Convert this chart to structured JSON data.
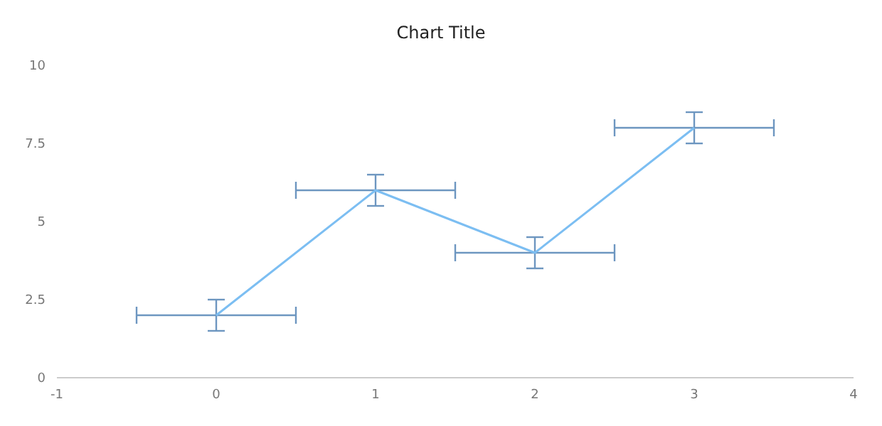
{
  "chart_data": {
    "type": "line",
    "title": "Chart Title",
    "x": [
      0,
      1,
      2,
      3
    ],
    "series": [
      {
        "color": "#7cbef2",
        "values": [
          2,
          6,
          4,
          8
        ],
        "errors": [
          0.5,
          0.5,
          0.5,
          0.5
        ],
        "xerrors": [
          0.5,
          0.5,
          0.5,
          0.5
        ]
      }
    ],
    "xlim": [
      -1,
      4
    ],
    "xticks": [
      -1,
      0,
      1,
      2,
      3,
      4
    ],
    "ylim": [
      0,
      10
    ],
    "yticks": [
      0,
      2.5,
      5,
      7.5,
      10
    ],
    "grid": false,
    "legend": false,
    "marker": "none",
    "line_style": "solid"
  }
}
